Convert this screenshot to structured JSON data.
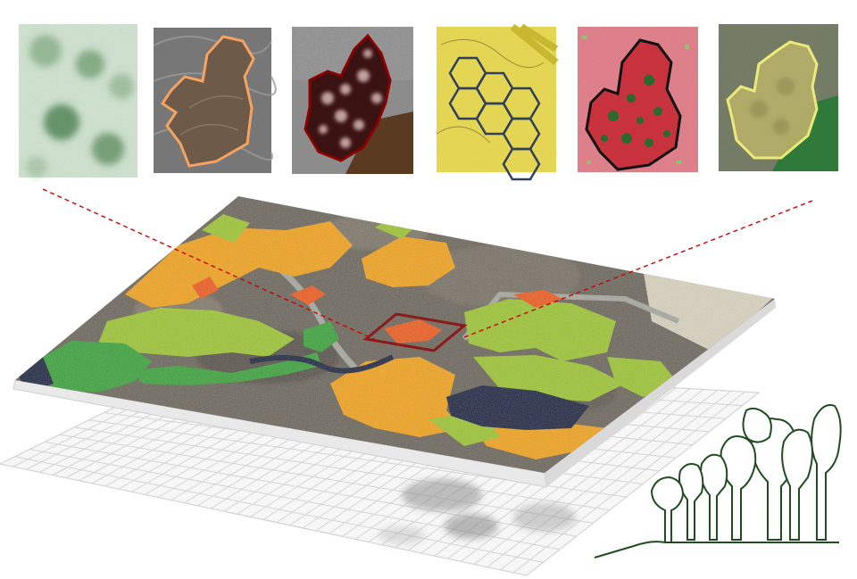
{
  "figure": {
    "title": "",
    "caption": ""
  },
  "thumbnails": [
    {
      "id": "thumb-1",
      "icon": "canopy-height-blob-panel",
      "outline_color": "",
      "background_color": "#cfe3cf"
    },
    {
      "id": "thumb-2",
      "icon": "terrain-contour-panel",
      "outline_color": "#f4a460",
      "background_color": "#6e5a48"
    },
    {
      "id": "thumb-3",
      "icon": "crown-segmentation-panel",
      "outline_color": "#8b0000",
      "background_color": "#3b1212"
    },
    {
      "id": "thumb-4",
      "icon": "hexagon-grid-panel",
      "outline_color": "#2f3f5c",
      "background_color": "#e8d84a"
    },
    {
      "id": "thumb-5",
      "icon": "classified-raster-panel",
      "outline_color": "#111111",
      "background_color": "#c8323c"
    },
    {
      "id": "thumb-6",
      "icon": "yellow-stand-outline-panel",
      "outline_color": "#f5f07a",
      "background_color": "#5f6d4d"
    }
  ],
  "map_layer": {
    "colors": {
      "orange": "#f2a21a",
      "light_green": "#9cc531",
      "dark_green": "#3aa23a",
      "red_orange": "#ee5a1d",
      "water": "#1e2540",
      "forest": "#6b655a",
      "highlight_box": "#8b1a1a"
    }
  },
  "grid_layer": {
    "color": "#d4d4d4"
  },
  "tree_icon": {
    "name": "forest-tree-outline-icon",
    "color": "#1f4d1f"
  },
  "connector_color": "#cc0000"
}
